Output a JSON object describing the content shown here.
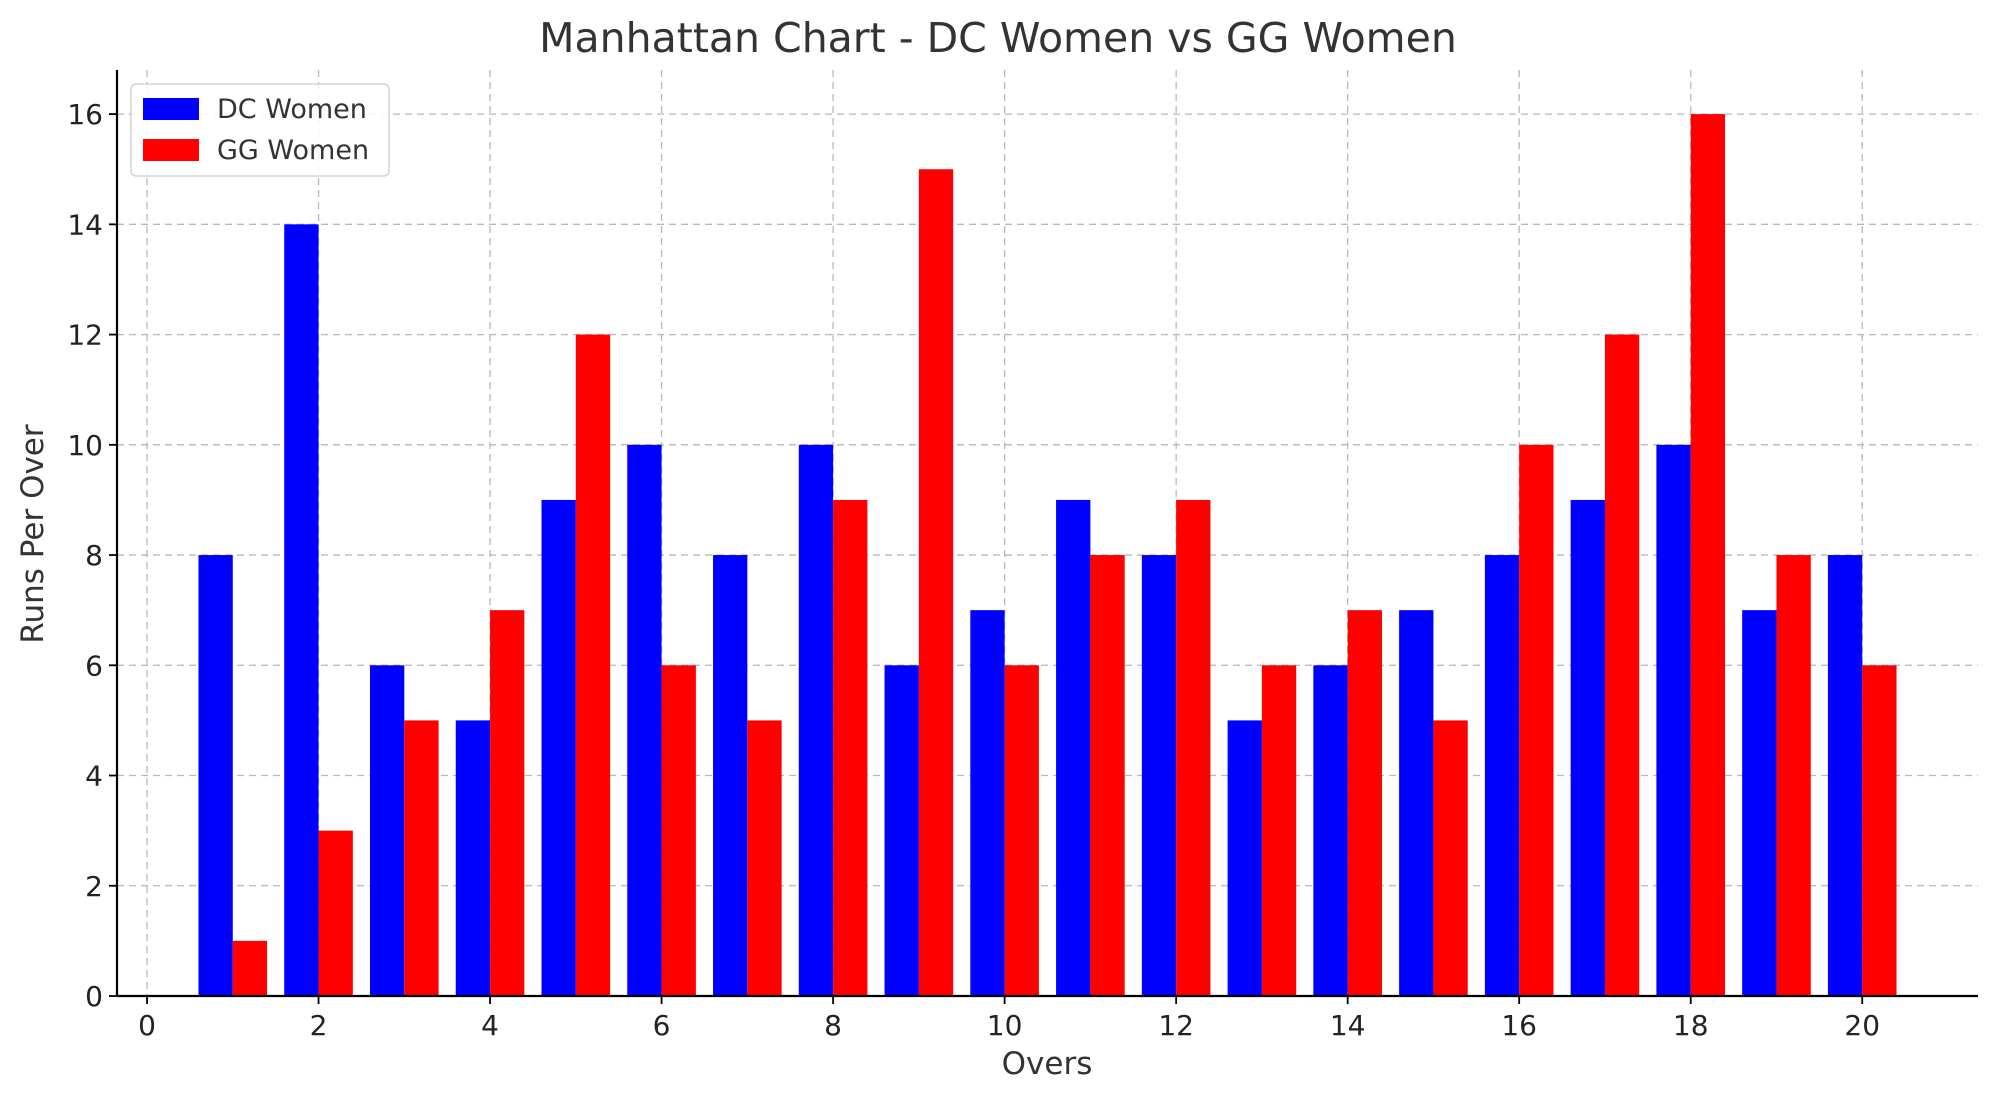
{
  "chart_data": {
    "type": "bar",
    "title": "Manhattan Chart - DC Women vs GG Women",
    "xlabel": "Overs",
    "ylabel": "Runs Per Over",
    "categories": [
      1,
      2,
      3,
      4,
      5,
      6,
      7,
      8,
      9,
      10,
      11,
      12,
      13,
      14,
      15,
      16,
      17,
      18,
      19,
      20
    ],
    "series": [
      {
        "name": "DC Women",
        "color": "#0000ff",
        "values": [
          8,
          14,
          6,
          5,
          9,
          10,
          8,
          10,
          6,
          7,
          9,
          8,
          5,
          6,
          7,
          8,
          9,
          10,
          7,
          8
        ]
      },
      {
        "name": "GG Women",
        "color": "#ff0000",
        "values": [
          1,
          3,
          5,
          7,
          12,
          6,
          5,
          9,
          15,
          6,
          8,
          9,
          6,
          7,
          5,
          10,
          12,
          16,
          8,
          6
        ]
      }
    ],
    "xticks": [
      0,
      2,
      4,
      6,
      8,
      10,
      12,
      14,
      16,
      18,
      20
    ],
    "yticks": [
      0,
      2,
      4,
      6,
      8,
      10,
      12,
      14,
      16
    ],
    "xlim": [
      -0.35,
      21.35
    ],
    "ylim": [
      0,
      16.8
    ],
    "grid": true,
    "legend_position": "top-left"
  }
}
